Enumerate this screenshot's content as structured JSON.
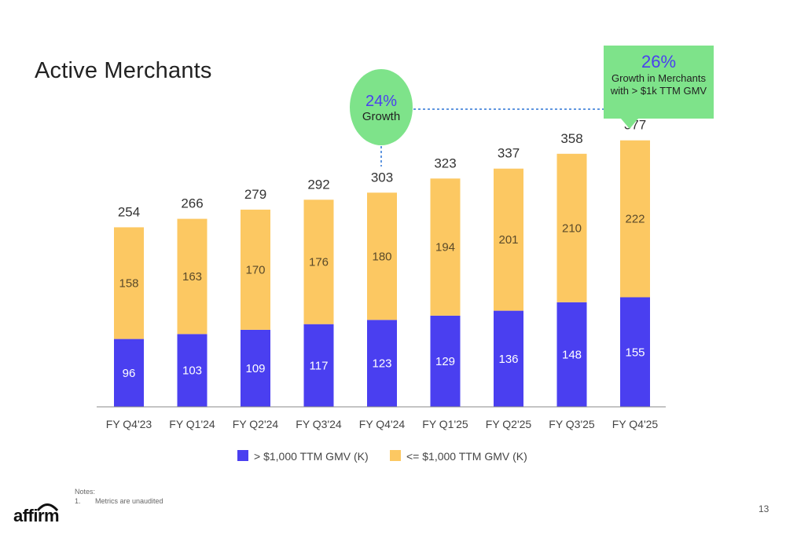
{
  "title": "Active Merchants",
  "growth_bubble": {
    "percent": "24%",
    "label": "Growth"
  },
  "callout": {
    "percent": "26%",
    "label": "Growth in Merchants with > $1k TTM GMV"
  },
  "notes": {
    "heading": "Notes:",
    "items": [
      {
        "num": "1.",
        "text": "Metrics are unaudited"
      }
    ]
  },
  "logo_text": "affirm",
  "page_number": "13",
  "colors": {
    "bottom_series": "#4a3ff0",
    "top_series": "#fcc862",
    "callout_bg": "#7ee38a",
    "axis": "#888888"
  },
  "chart_data": {
    "type": "bar",
    "stacked": true,
    "categories": [
      "FY Q4'23",
      "FY Q1'24",
      "FY Q2'24",
      "FY Q3'24",
      "FY Q4'24",
      "FY Q1'25",
      "FY Q2'25",
      "FY Q3'25",
      "FY Q4'25"
    ],
    "series": [
      {
        "name": "> $1,000 TTM GMV (K)",
        "color": "#4a3ff0",
        "values": [
          96,
          103,
          109,
          117,
          123,
          129,
          136,
          148,
          155
        ]
      },
      {
        "name": "<= $1,000 TTM GMV (K)",
        "color": "#fcc862",
        "values": [
          158,
          163,
          170,
          176,
          180,
          194,
          201,
          210,
          222
        ]
      }
    ],
    "totals": [
      254,
      266,
      279,
      292,
      303,
      323,
      337,
      358,
      377
    ],
    "ylim": [
      0,
      420
    ],
    "legend_position": "bottom",
    "grid": false
  }
}
